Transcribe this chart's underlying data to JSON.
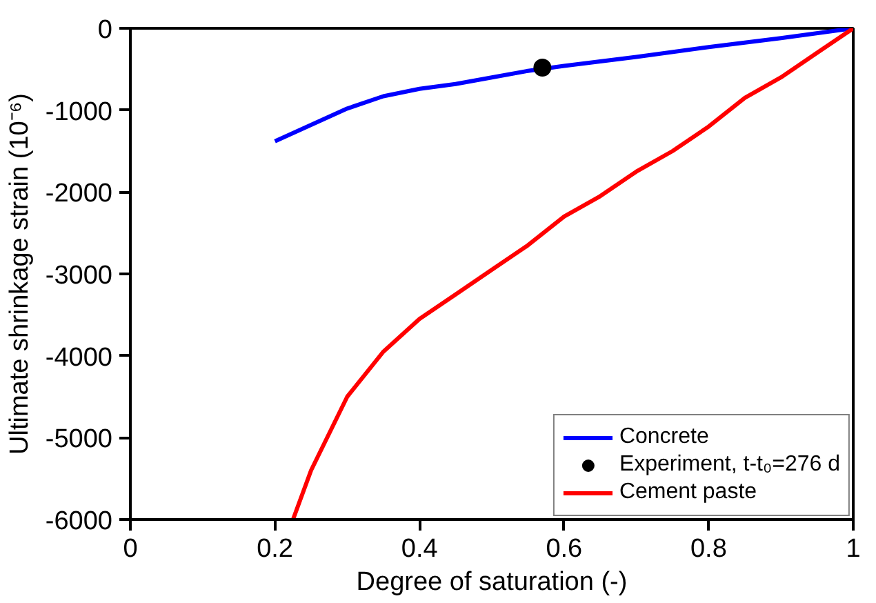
{
  "chart_data": {
    "type": "line",
    "xlabel": "Degree of saturation (-)",
    "ylabel": "Ultimate shrinkage strain (10⁻⁶)",
    "xlim": [
      0,
      1
    ],
    "ylim": [
      -6000,
      0
    ],
    "xticks": [
      0,
      0.2,
      0.4,
      0.6,
      0.8,
      1
    ],
    "yticks": [
      -6000,
      -5000,
      -4000,
      -3000,
      -2000,
      -1000,
      0
    ],
    "grid": false,
    "legend": "bottom right",
    "series": [
      {
        "name": "Concrete",
        "color": "#0000ff",
        "x": [
          0.2,
          0.25,
          0.3,
          0.35,
          0.4,
          0.45,
          0.5,
          0.55,
          0.6,
          0.7,
          0.8,
          0.9,
          1.0
        ],
        "values": [
          -1380,
          -1180,
          -980,
          -830,
          -740,
          -680,
          -600,
          -520,
          -460,
          -350,
          -230,
          -120,
          0
        ]
      },
      {
        "name": "Experiment, t-t₀=276 d",
        "type": "scatter",
        "marker": "circle",
        "color": "#000000",
        "x": [
          0.57
        ],
        "values": [
          -480
        ]
      },
      {
        "name": "Cement paste",
        "color": "#ff0000",
        "x": [
          0.225,
          0.25,
          0.3,
          0.35,
          0.4,
          0.45,
          0.5,
          0.55,
          0.6,
          0.65,
          0.7,
          0.75,
          0.8,
          0.85,
          0.9,
          0.95,
          1.0
        ],
        "values": [
          -6000,
          -5400,
          -4500,
          -3950,
          -3550,
          -3250,
          -2950,
          -2650,
          -2300,
          -2050,
          -1750,
          -1500,
          -1200,
          -850,
          -600,
          -300,
          0
        ]
      }
    ]
  }
}
